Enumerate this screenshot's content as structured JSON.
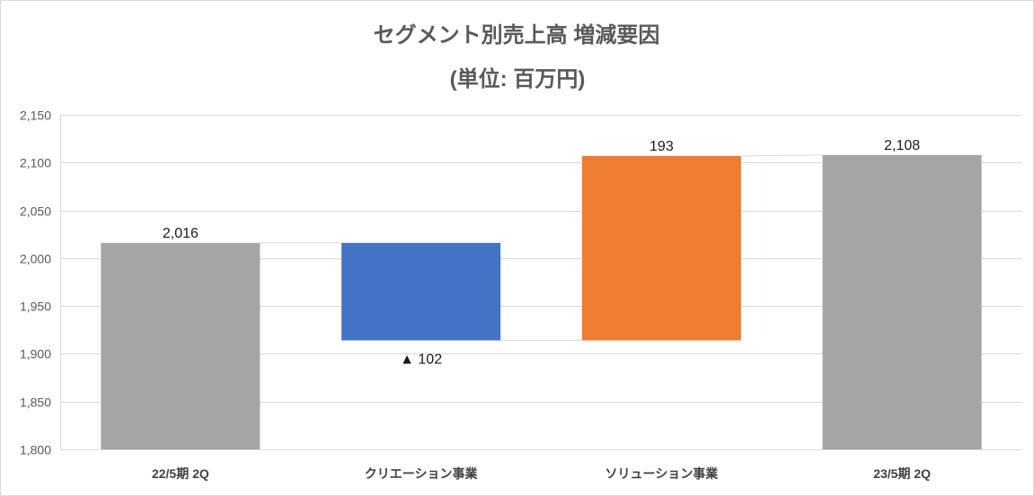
{
  "chart_data": {
    "type": "bar",
    "waterfall": true,
    "title": "セグメント別売上高 増減要因",
    "subtitle": "(単位: 百万円)",
    "categories": [
      "22/5期 2Q",
      "クリエーション事業",
      "ソリューション事業",
      "23/5期 2Q"
    ],
    "values": [
      2016,
      -102,
      193,
      2108
    ],
    "totals": [
      true,
      false,
      false,
      true
    ],
    "data_labels": [
      "2,016",
      "▲ 102",
      "193",
      "2,108"
    ],
    "colors": [
      "#a5a5a5",
      "#4472c4",
      "#ed7d31",
      "#a5a5a5"
    ],
    "ylim": [
      1800,
      2150
    ],
    "y_ticks": [
      1800,
      1850,
      1900,
      1950,
      2000,
      2050,
      2100,
      2150
    ],
    "y_tick_labels": [
      "1,800",
      "1,850",
      "1,900",
      "1,950",
      "2,000",
      "2,050",
      "2,100",
      "2,150"
    ],
    "grid": true
  }
}
